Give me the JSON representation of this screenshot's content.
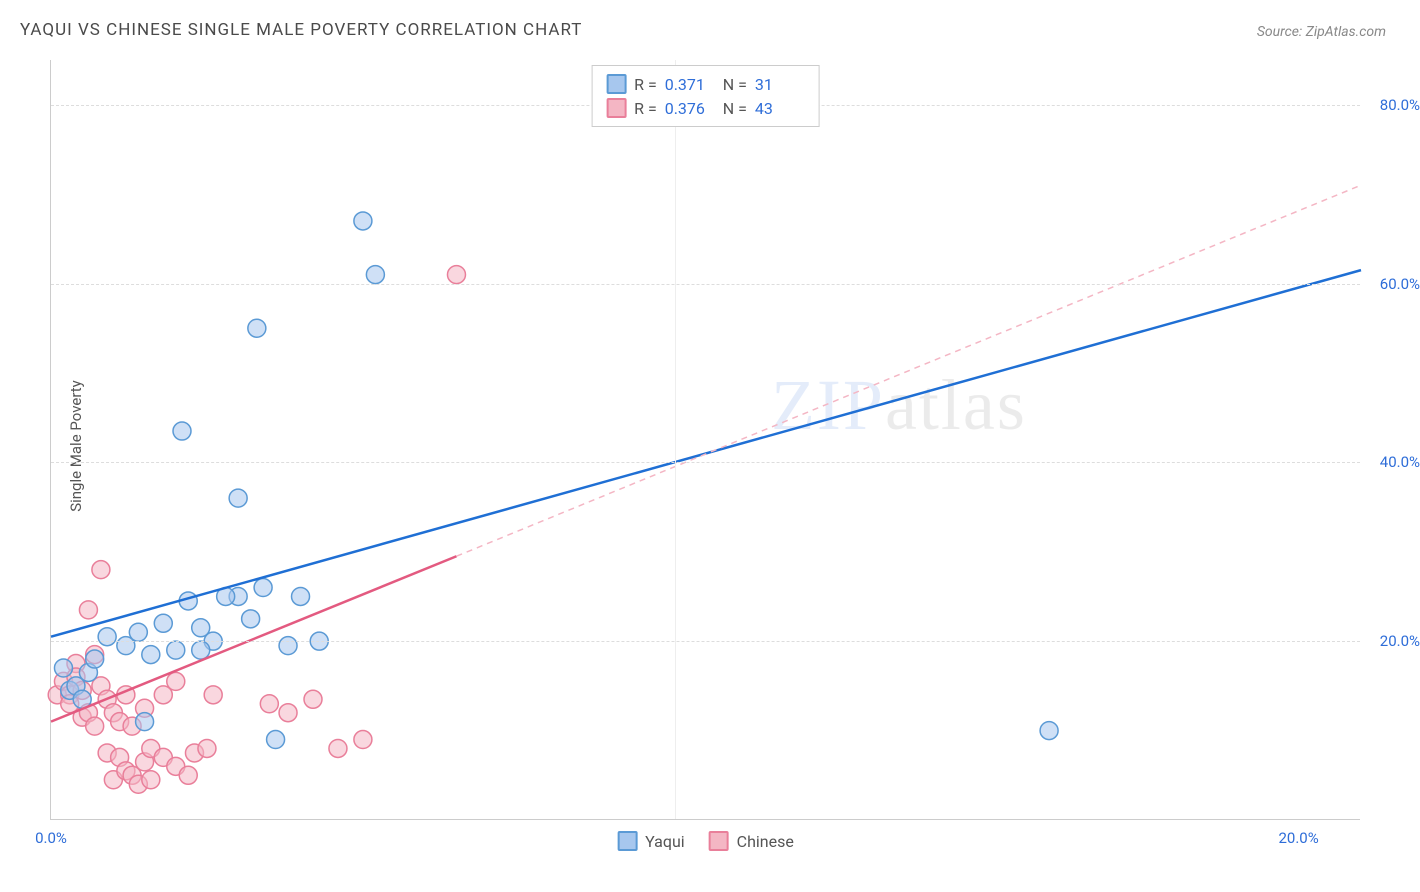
{
  "title": "YAQUI VS CHINESE SINGLE MALE POVERTY CORRELATION CHART",
  "source": "Source: ZipAtlas.com",
  "ylabel": "Single Male Poverty",
  "watermark_text": "ZIPatlas",
  "colors": {
    "yaqui_fill": "#a7c7ee",
    "yaqui_stroke": "#5b9ad5",
    "yaqui_line": "#1f6fd4",
    "chinese_fill": "#f4b6c4",
    "chinese_stroke": "#e97f9a",
    "chinese_line": "#e35a80",
    "chinese_dash": "#f4b6c4",
    "grid": "#dddddd",
    "axis": "#cccccc",
    "tick_blue": "#2e6dd8",
    "text": "#4a4a4a"
  },
  "plot": {
    "x_min": 0,
    "x_max": 20,
    "x_right_extend": 21,
    "y_min": 0,
    "y_max": 85,
    "xticks": [
      0,
      20
    ],
    "xtick_labels": [
      "0.0%",
      "20.0%"
    ],
    "yticks": [
      20,
      40,
      60,
      80
    ],
    "ytick_labels": [
      "20.0%",
      "40.0%",
      "60.0%",
      "80.0%"
    ],
    "vgrid_at": [
      10
    ],
    "marker_radius": 9,
    "marker_opacity": 0.55,
    "line_width": 2.5,
    "dash_pattern": "6,5"
  },
  "legend_top": [
    {
      "swatch_fill": "#a7c7ee",
      "swatch_stroke": "#5b9ad5",
      "r_label": "R =",
      "r_value": "0.371",
      "n_label": "N =",
      "n_value": "31"
    },
    {
      "swatch_fill": "#f4b6c4",
      "swatch_stroke": "#e97f9a",
      "r_label": "R =",
      "r_value": "0.376",
      "n_label": "N =",
      "n_value": "43"
    }
  ],
  "legend_bottom": [
    {
      "swatch_fill": "#a7c7ee",
      "swatch_stroke": "#5b9ad5",
      "label": "Yaqui"
    },
    {
      "swatch_fill": "#f4b6c4",
      "swatch_stroke": "#e97f9a",
      "label": "Chinese"
    }
  ],
  "series": {
    "yaqui": {
      "points": [
        [
          0.3,
          14.5
        ],
        [
          0.2,
          17.0
        ],
        [
          0.4,
          15.0
        ],
        [
          0.6,
          16.5
        ],
        [
          0.5,
          13.5
        ],
        [
          0.7,
          18.0
        ],
        [
          0.9,
          20.5
        ],
        [
          1.2,
          19.5
        ],
        [
          1.4,
          21.0
        ],
        [
          1.6,
          18.5
        ],
        [
          1.8,
          22.0
        ],
        [
          2.0,
          19.0
        ],
        [
          2.2,
          24.5
        ],
        [
          2.4,
          21.5
        ],
        [
          2.6,
          20.0
        ],
        [
          3.0,
          25.0
        ],
        [
          3.2,
          22.5
        ],
        [
          3.4,
          26.0
        ],
        [
          3.8,
          19.5
        ],
        [
          4.0,
          25.0
        ],
        [
          4.3,
          20.0
        ],
        [
          1.5,
          11.0
        ],
        [
          3.6,
          9.0
        ],
        [
          2.1,
          43.5
        ],
        [
          3.3,
          55.0
        ],
        [
          5.2,
          61.0
        ],
        [
          5.0,
          67.0
        ],
        [
          3.0,
          36.0
        ],
        [
          2.4,
          19.0
        ],
        [
          2.8,
          25.0
        ],
        [
          16.0,
          10.0
        ]
      ],
      "trend": {
        "x1": 0,
        "y1": 20.5,
        "x2": 21,
        "y2": 61.5
      }
    },
    "chinese": {
      "points": [
        [
          0.1,
          14.0
        ],
        [
          0.2,
          15.5
        ],
        [
          0.3,
          14.0
        ],
        [
          0.3,
          13.0
        ],
        [
          0.4,
          17.5
        ],
        [
          0.4,
          16.0
        ],
        [
          0.5,
          14.5
        ],
        [
          0.5,
          11.5
        ],
        [
          0.6,
          23.5
        ],
        [
          0.6,
          12.0
        ],
        [
          0.7,
          18.5
        ],
        [
          0.7,
          10.5
        ],
        [
          0.8,
          15.0
        ],
        [
          0.8,
          28.0
        ],
        [
          0.9,
          13.5
        ],
        [
          0.9,
          7.5
        ],
        [
          1.0,
          12.0
        ],
        [
          1.0,
          4.5
        ],
        [
          1.1,
          11.0
        ],
        [
          1.1,
          7.0
        ],
        [
          1.2,
          14.0
        ],
        [
          1.2,
          5.5
        ],
        [
          1.3,
          10.5
        ],
        [
          1.3,
          5.0
        ],
        [
          1.4,
          4.0
        ],
        [
          1.5,
          6.5
        ],
        [
          1.5,
          12.5
        ],
        [
          1.6,
          8.0
        ],
        [
          1.6,
          4.5
        ],
        [
          1.8,
          7.0
        ],
        [
          1.8,
          14.0
        ],
        [
          2.0,
          6.0
        ],
        [
          2.0,
          15.5
        ],
        [
          2.2,
          5.0
        ],
        [
          2.3,
          7.5
        ],
        [
          2.5,
          8.0
        ],
        [
          2.6,
          14.0
        ],
        [
          3.5,
          13.0
        ],
        [
          3.8,
          12.0
        ],
        [
          4.2,
          13.5
        ],
        [
          4.6,
          8.0
        ],
        [
          5.0,
          9.0
        ],
        [
          6.5,
          61.0
        ]
      ],
      "trend_solid": {
        "x1": 0,
        "y1": 11.0,
        "x2": 6.5,
        "y2": 29.5
      },
      "trend_dash": {
        "x1": 6.5,
        "y1": 29.5,
        "x2": 21,
        "y2": 71.0
      }
    }
  }
}
